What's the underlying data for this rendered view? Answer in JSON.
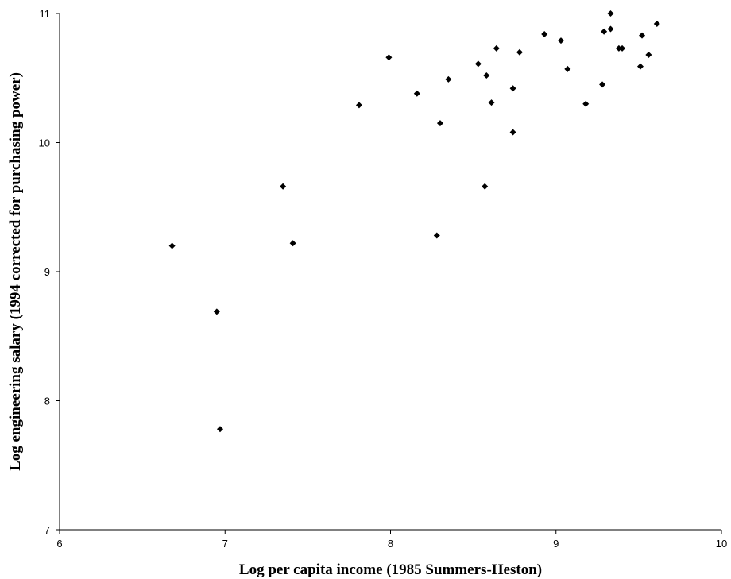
{
  "chart_data": {
    "type": "scatter",
    "xlabel": "Log per capita income (1985 Summers-Heston)",
    "ylabel": "Log engineering salary (1994 corrected for purchasing power)",
    "xlim": [
      6,
      10
    ],
    "ylim": [
      7,
      11
    ],
    "xticks": [
      6,
      7,
      8,
      9,
      10
    ],
    "yticks": [
      7,
      8,
      9,
      10,
      11
    ],
    "grid": false,
    "marker": "diamond",
    "color": "#000000",
    "points": [
      {
        "x": 6.68,
        "y": 9.2
      },
      {
        "x": 6.95,
        "y": 8.69
      },
      {
        "x": 6.97,
        "y": 7.78
      },
      {
        "x": 7.35,
        "y": 9.66
      },
      {
        "x": 7.41,
        "y": 9.22
      },
      {
        "x": 7.81,
        "y": 10.29
      },
      {
        "x": 7.99,
        "y": 10.66
      },
      {
        "x": 8.16,
        "y": 10.38
      },
      {
        "x": 8.28,
        "y": 9.28
      },
      {
        "x": 8.3,
        "y": 10.15
      },
      {
        "x": 8.35,
        "y": 10.49
      },
      {
        "x": 8.53,
        "y": 10.61
      },
      {
        "x": 8.57,
        "y": 9.66
      },
      {
        "x": 8.58,
        "y": 10.52
      },
      {
        "x": 8.61,
        "y": 10.31
      },
      {
        "x": 8.64,
        "y": 10.73
      },
      {
        "x": 8.74,
        "y": 10.42
      },
      {
        "x": 8.74,
        "y": 10.08
      },
      {
        "x": 8.78,
        "y": 10.7
      },
      {
        "x": 8.93,
        "y": 10.84
      },
      {
        "x": 9.03,
        "y": 10.79
      },
      {
        "x": 9.07,
        "y": 10.57
      },
      {
        "x": 9.18,
        "y": 10.3
      },
      {
        "x": 9.28,
        "y": 10.45
      },
      {
        "x": 9.29,
        "y": 10.86
      },
      {
        "x": 9.33,
        "y": 11.0
      },
      {
        "x": 9.33,
        "y": 10.88
      },
      {
        "x": 9.38,
        "y": 10.73
      },
      {
        "x": 9.4,
        "y": 10.73
      },
      {
        "x": 9.51,
        "y": 10.59
      },
      {
        "x": 9.52,
        "y": 10.83
      },
      {
        "x": 9.56,
        "y": 10.68
      },
      {
        "x": 9.61,
        "y": 10.92
      }
    ]
  }
}
